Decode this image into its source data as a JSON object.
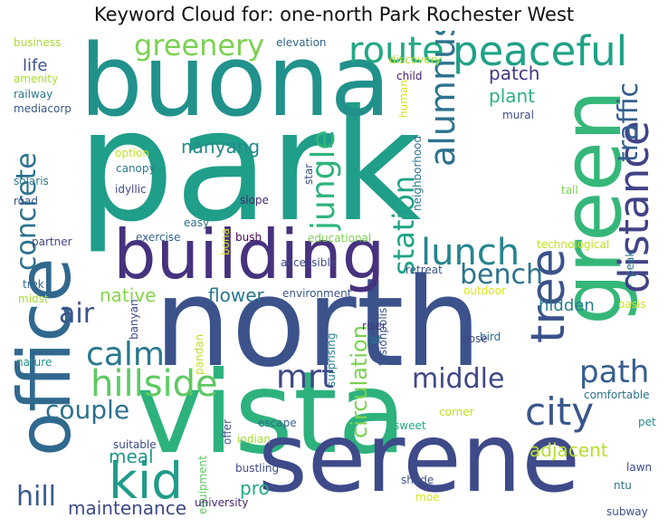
{
  "title": "Keyword Cloud for: one-north Park Rochester West",
  "words": [
    {
      "text": "park",
      "color": "#1f9e89"
    },
    {
      "text": "north",
      "color": "#3b528b"
    },
    {
      "text": "buona",
      "color": "#21918c"
    },
    {
      "text": "vista",
      "color": "#2db27d"
    },
    {
      "text": "serene",
      "color": "#3e4a89"
    },
    {
      "text": "office",
      "color": "#31688e"
    },
    {
      "text": "green",
      "color": "#35b779"
    },
    {
      "text": "building",
      "color": "#46327e"
    },
    {
      "text": "peaceful",
      "color": "#1fa187"
    },
    {
      "text": "distance",
      "color": "#414487"
    },
    {
      "text": "route",
      "color": "#22a884"
    },
    {
      "text": "greenery",
      "color": "#7ad151"
    },
    {
      "text": "tree",
      "color": "#3b528b"
    },
    {
      "text": "city",
      "color": "#39568c"
    },
    {
      "text": "kid",
      "color": "#1e9c89"
    },
    {
      "text": "lunch",
      "color": "#25858e"
    },
    {
      "text": "bench",
      "color": "#2c738e"
    },
    {
      "text": "calm",
      "color": "#2a788e"
    },
    {
      "text": "hillside",
      "color": "#5ec962"
    },
    {
      "text": "alumnus",
      "color": "#2c728e"
    },
    {
      "text": "jungle",
      "color": "#2fb47c"
    },
    {
      "text": "traffic",
      "color": "#355f8d"
    },
    {
      "text": "station",
      "color": "#20a486"
    },
    {
      "text": "concrete",
      "color": "#2c728e"
    },
    {
      "text": "path",
      "color": "#355e8d"
    },
    {
      "text": "mrt",
      "color": "#3e4989"
    },
    {
      "text": "middle",
      "color": "#3f4788"
    },
    {
      "text": "couple",
      "color": "#2d708e"
    },
    {
      "text": "air",
      "color": "#3b528b"
    },
    {
      "text": "hill",
      "color": "#38598c"
    },
    {
      "text": "circulation",
      "color": "#7ad151"
    },
    {
      "text": "meal",
      "color": "#1f968b"
    },
    {
      "text": "maintenance",
      "color": "#3e4989"
    },
    {
      "text": "adjacent",
      "color": "#b5de2b"
    },
    {
      "text": "pro",
      "color": "#22a884"
    },
    {
      "text": "flower",
      "color": "#2a788e"
    },
    {
      "text": "native",
      "color": "#86d549"
    },
    {
      "text": "hidden",
      "color": "#287c8e"
    },
    {
      "text": "plant",
      "color": "#2db27d"
    },
    {
      "text": "patch",
      "color": "#443983"
    },
    {
      "text": "nanyang",
      "color": "#238a8d"
    },
    {
      "text": "life",
      "color": "#3b528b"
    },
    {
      "text": "business",
      "color": "#a8db34"
    },
    {
      "text": "elevation",
      "color": "#33638d"
    },
    {
      "text": "discovery",
      "color": "#b5de2b"
    },
    {
      "text": "amenity",
      "color": "#a8db34"
    },
    {
      "text": "railway",
      "color": "#2a788e"
    },
    {
      "text": "mediacorp",
      "color": "#39568c"
    },
    {
      "text": "child",
      "color": "#482173"
    },
    {
      "text": "human",
      "color": "#d8e219"
    },
    {
      "text": "mural",
      "color": "#3e4989"
    },
    {
      "text": "option",
      "color": "#c2df23"
    },
    {
      "text": "canopy",
      "color": "#2a788e"
    },
    {
      "text": "idyllic",
      "color": "#3e4989"
    },
    {
      "text": "solaris",
      "color": "#2a788e"
    },
    {
      "text": "road",
      "color": "#3b528b"
    },
    {
      "text": "star",
      "color": "#3b528b"
    },
    {
      "text": "neighborhood",
      "color": "#2c728e"
    },
    {
      "text": "tall",
      "color": "#7ad151"
    },
    {
      "text": "slope",
      "color": "#482878"
    },
    {
      "text": "easy",
      "color": "#2c728e"
    },
    {
      "text": "exercise",
      "color": "#33638d"
    },
    {
      "text": "bush",
      "color": "#440154"
    },
    {
      "text": "educational",
      "color": "#7ad151"
    },
    {
      "text": "technological",
      "color": "#c2df23"
    },
    {
      "text": "partner",
      "color": "#414487"
    },
    {
      "text": "bona",
      "color": "#d8e219"
    },
    {
      "text": "accessible",
      "color": "#3e4989"
    },
    {
      "text": "retreat",
      "color": "#3b528b"
    },
    {
      "text": "peak",
      "color": "#2c728e"
    },
    {
      "text": "trek",
      "color": "#31688e"
    },
    {
      "text": "midst",
      "color": "#a8db34"
    },
    {
      "text": "environment",
      "color": "#39568c"
    },
    {
      "text": "outdoor",
      "color": "#dde318"
    },
    {
      "text": "oasis",
      "color": "#d8e219"
    },
    {
      "text": "banyan",
      "color": "#3e4989"
    },
    {
      "text": "riser",
      "color": "#46337e"
    },
    {
      "text": "rat",
      "color": "#2a788e"
    },
    {
      "text": "fusionpolis",
      "color": "#3b528b"
    },
    {
      "text": "bird",
      "color": "#31688e"
    },
    {
      "text": "nature",
      "color": "#21918c"
    },
    {
      "text": "pandan",
      "color": "#c2df23"
    },
    {
      "text": "surprising",
      "color": "#26828e"
    },
    {
      "text": "dose",
      "color": "#3e4989"
    },
    {
      "text": "comfortable",
      "color": "#2c728e"
    },
    {
      "text": "corner",
      "color": "#c2df23"
    },
    {
      "text": "sweet",
      "color": "#22a884"
    },
    {
      "text": "pet",
      "color": "#238a8d"
    },
    {
      "text": "offer",
      "color": "#3b528b"
    },
    {
      "text": "escape",
      "color": "#31688e"
    },
    {
      "text": "indian",
      "color": "#a8db34"
    },
    {
      "text": "suitable",
      "color": "#3e4989"
    },
    {
      "text": "equipment",
      "color": "#5ec962"
    },
    {
      "text": "bustling",
      "color": "#3e4989"
    },
    {
      "text": "university",
      "color": "#482878"
    },
    {
      "text": "shade",
      "color": "#3b528b"
    },
    {
      "text": "moe",
      "color": "#d8e219"
    },
    {
      "text": "ntu",
      "color": "#2a788e"
    },
    {
      "text": "lawn",
      "color": "#3e4989"
    },
    {
      "text": "subway",
      "color": "#3b528b"
    }
  ]
}
